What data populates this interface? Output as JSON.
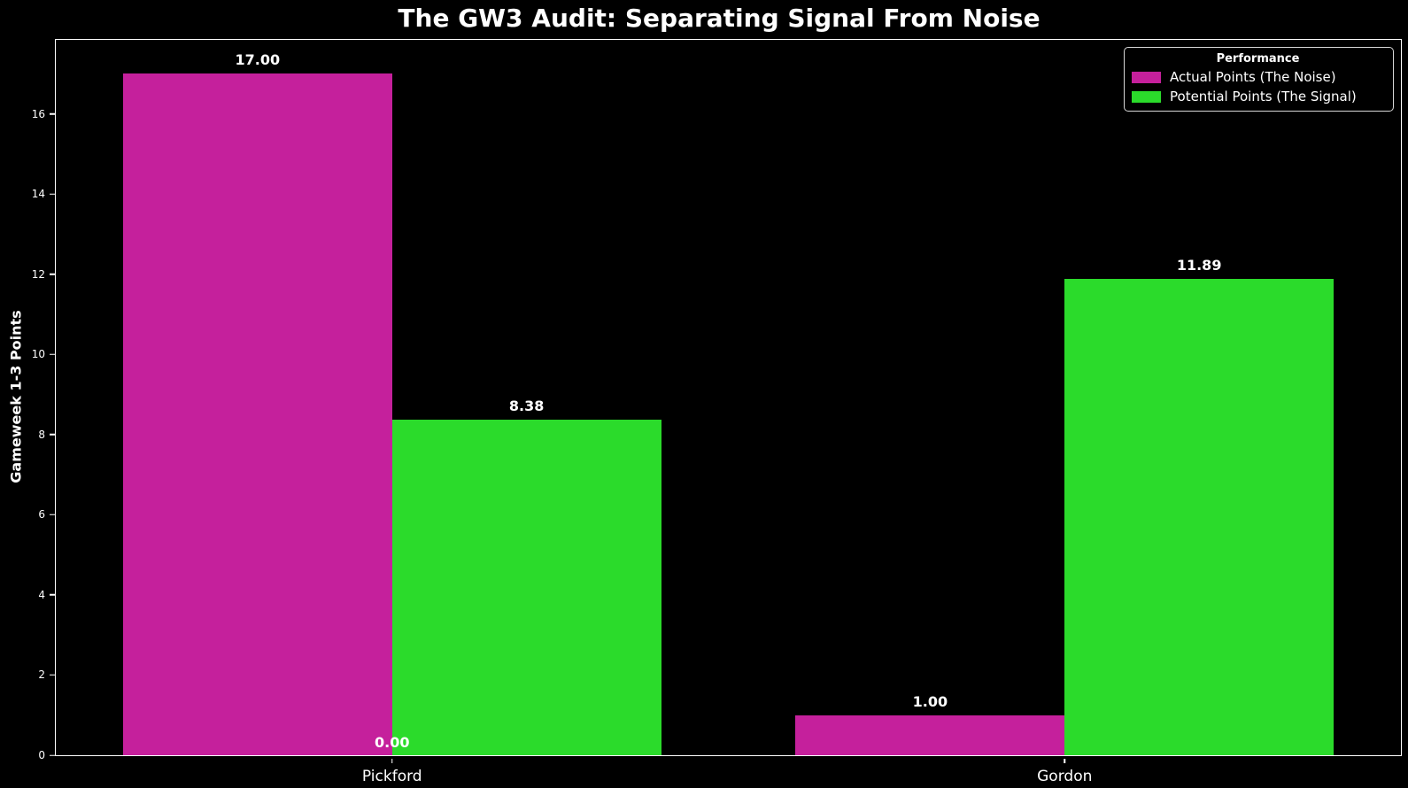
{
  "title": "The GW3 Audit: Separating Signal From Noise",
  "colors": {
    "background": "#000000",
    "foreground": "#ffffff",
    "actual_points": "#c5209c",
    "potential_points": "#2bdb2b",
    "legend_border": "#d8d8d8"
  },
  "chart_data": {
    "type": "bar",
    "title": "The GW3 Audit: Separating Signal From Noise",
    "xlabel": "",
    "ylabel": "Gameweek 1-3 Points",
    "categories": [
      "Pickford",
      "Gordon"
    ],
    "series": [
      {
        "name": "Actual Points (The Noise)",
        "color": "#c5209c",
        "values": [
          17.0,
          1.0
        ],
        "labels": [
          "17.00",
          "1.00"
        ]
      },
      {
        "name": "Potential Points (The Signal)",
        "color": "#2bdb2b",
        "values": [
          8.38,
          11.89
        ],
        "labels": [
          "8.38",
          "11.89"
        ]
      }
    ],
    "annotations": [
      {
        "text": "0.00",
        "x": 0,
        "y": 0
      }
    ],
    "yticks": [
      0,
      2,
      4,
      6,
      8,
      10,
      12,
      14,
      16
    ],
    "ylim": [
      0,
      17.85
    ],
    "xlim": [
      -0.5,
      1.5
    ],
    "bar_width": 0.4,
    "grid": false,
    "legend": {
      "title": "Performance",
      "position": "upper right",
      "entries": [
        "Actual Points (The Noise)",
        "Potential Points (The Signal)"
      ]
    }
  }
}
